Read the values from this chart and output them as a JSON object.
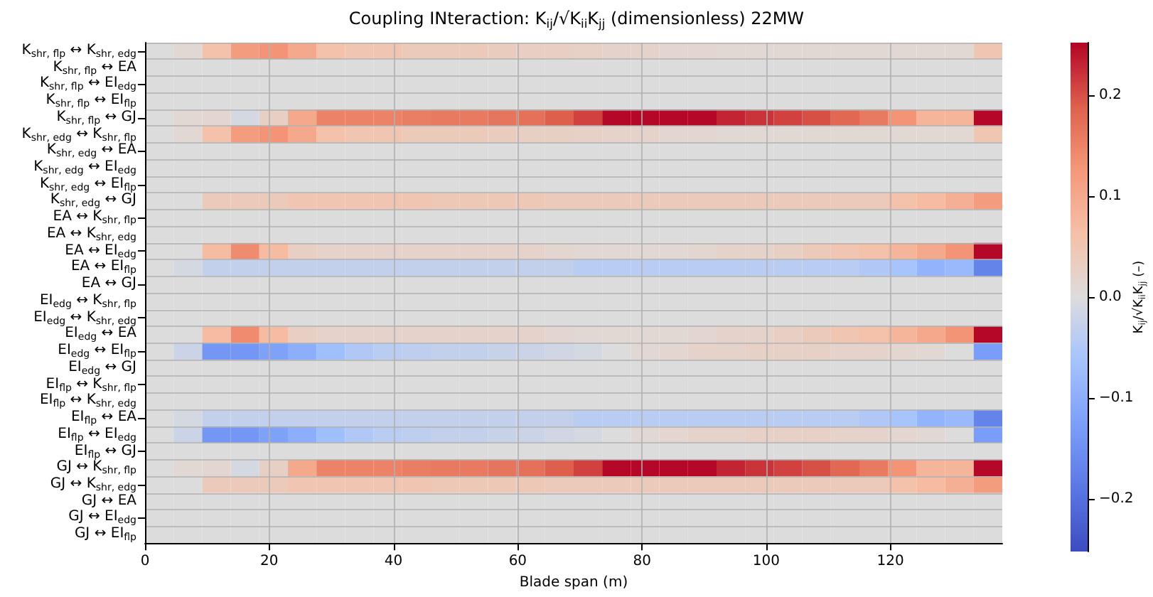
{
  "chart_data": {
    "type": "heatmap",
    "title": "Coupling INteraction: K$_{ij}$/√K$_{ii}$K$_{jj}$ (dimensionless) 22MW",
    "xlabel": "Blade span (m)",
    "clabel": "K$_{ij}$/√K$_{ii}$K$_{jj}$ (–)",
    "x": [
      2.3,
      6.9,
      11.5,
      16.1,
      20.7,
      25.3,
      29.9,
      34.5,
      39.1,
      43.7,
      48.3,
      52.9,
      57.5,
      62.1,
      66.7,
      71.3,
      75.9,
      80.5,
      85.1,
      89.7,
      94.3,
      98.9,
      103.5,
      108.1,
      112.7,
      117.3,
      121.9,
      126.5,
      131.1,
      135.7
    ],
    "xlim": [
      0,
      138
    ],
    "xticks": [
      0,
      20,
      40,
      60,
      80,
      100,
      120
    ],
    "y_categories": [
      "K$_{shr, flp}$ ↔ K$_{shr, edg}$",
      "K$_{shr, flp}$ ↔ EA",
      "K$_{shr, flp}$ ↔ EI$_{edg}$",
      "K$_{shr, flp}$ ↔ EI$_{flp}$",
      "K$_{shr, flp}$ ↔ GJ",
      "K$_{shr, edg}$ ↔ K$_{shr, flp}$",
      "K$_{shr, edg}$ ↔ EA",
      "K$_{shr, edg}$ ↔ EI$_{edg}$",
      "K$_{shr, edg}$ ↔ EI$_{flp}$",
      "K$_{shr, edg}$ ↔ GJ",
      "EA ↔ K$_{shr, flp}$",
      "EA ↔ K$_{shr, edg}$",
      "EA ↔ EI$_{edg}$",
      "EA ↔ EI$_{flp}$",
      "EA ↔ GJ",
      "EI$_{edg}$ ↔ K$_{shr, flp}$",
      "EI$_{edg}$ ↔ K$_{shr, edg}$",
      "EI$_{edg}$ ↔ EA",
      "EI$_{edg}$ ↔ EI$_{flp}$",
      "EI$_{edg}$ ↔ GJ",
      "EI$_{flp}$ ↔ K$_{shr, flp}$",
      "EI$_{flp}$ ↔ K$_{shr, edg}$",
      "EI$_{flp}$ ↔ EA",
      "EI$_{flp}$ ↔ EI$_{edg}$",
      "EI$_{flp}$ ↔ GJ",
      "GJ ↔ K$_{shr, flp}$",
      "GJ ↔ K$_{shr, edg}$",
      "GJ ↔ EA",
      "GJ ↔ EI$_{edg}$",
      "GJ ↔ EI$_{flp}$"
    ],
    "cells": [
      [
        0,
        0.01,
        0.06,
        0.12,
        0.13,
        0.1,
        0.06,
        0.05,
        0.05,
        0.04,
        0.04,
        0.04,
        0.035,
        0.03,
        0.03,
        0.025,
        0.02,
        0.02,
        0.015,
        0.015,
        0.01,
        0.01,
        0.01,
        0.01,
        0.01,
        0.01,
        0.01,
        0.01,
        0.01,
        0.05
      ],
      [
        0,
        0,
        0,
        0,
        0,
        0,
        0,
        0,
        0,
        0,
        0,
        0,
        0,
        0,
        0,
        0,
        0,
        0,
        0,
        0,
        0,
        0,
        0,
        0,
        0,
        0,
        0,
        0,
        0,
        0
      ],
      [
        0,
        0,
        0,
        0,
        0,
        0,
        0,
        0,
        0,
        0,
        0,
        0,
        0,
        0,
        0,
        0,
        0,
        0,
        0,
        0,
        0,
        0,
        0,
        0,
        0,
        0,
        0,
        0,
        0,
        0
      ],
      [
        0,
        0,
        0,
        0,
        0,
        0,
        0,
        0,
        0,
        0,
        0,
        0,
        0,
        0,
        0,
        0,
        0,
        0,
        0,
        0,
        0,
        0,
        0,
        0,
        0,
        0,
        0,
        0,
        0,
        0
      ],
      [
        0,
        0.01,
        0.015,
        -0.01,
        0.03,
        0.1,
        0.15,
        0.15,
        0.15,
        0.155,
        0.16,
        0.16,
        0.165,
        0.17,
        0.19,
        0.21,
        0.25,
        0.25,
        0.25,
        0.25,
        0.23,
        0.22,
        0.21,
        0.2,
        0.18,
        0.16,
        0.13,
        0.08,
        0.08,
        0.25
      ],
      [
        0,
        0.01,
        0.06,
        0.12,
        0.13,
        0.1,
        0.06,
        0.05,
        0.05,
        0.04,
        0.04,
        0.04,
        0.035,
        0.03,
        0.03,
        0.025,
        0.02,
        0.02,
        0.015,
        0.015,
        0.01,
        0.01,
        0.01,
        0.01,
        0.01,
        0.01,
        0.01,
        0.01,
        0.01,
        0.05
      ],
      [
        0,
        0,
        0,
        0,
        0,
        0,
        0,
        0,
        0,
        0,
        0,
        0,
        0,
        0,
        0,
        0,
        0,
        0,
        0,
        0,
        0,
        0,
        0,
        0,
        0,
        0,
        0,
        0,
        0,
        0
      ],
      [
        0,
        0,
        0,
        0,
        0,
        0,
        0,
        0,
        0,
        0,
        0,
        0,
        0,
        0,
        0,
        0,
        0,
        0,
        0,
        0,
        0,
        0,
        0,
        0,
        0,
        0,
        0,
        0,
        0,
        0
      ],
      [
        0,
        0,
        0,
        0,
        0,
        0,
        0,
        0,
        0,
        0,
        0,
        0,
        0,
        0,
        0,
        0,
        0,
        0,
        0,
        0,
        0,
        0,
        0,
        0,
        0,
        0,
        0,
        0,
        0,
        0
      ],
      [
        0,
        0,
        0.04,
        0.04,
        0.04,
        0.05,
        0.05,
        0.05,
        0.05,
        0.05,
        0.045,
        0.045,
        0.045,
        0.045,
        0.04,
        0.04,
        0.04,
        0.04,
        0.04,
        0.04,
        0.04,
        0.04,
        0.04,
        0.04,
        0.04,
        0.04,
        0.06,
        0.07,
        0.09,
        0.12
      ],
      [
        0,
        0,
        0,
        0,
        0,
        0,
        0,
        0,
        0,
        0,
        0,
        0,
        0,
        0,
        0,
        0,
        0,
        0,
        0,
        0,
        0,
        0,
        0,
        0,
        0,
        0,
        0,
        0,
        0,
        0
      ],
      [
        0,
        0,
        0,
        0,
        0,
        0,
        0,
        0,
        0,
        0,
        0,
        0,
        0,
        0,
        0,
        0,
        0,
        0,
        0,
        0,
        0,
        0,
        0,
        0,
        0,
        0,
        0,
        0,
        0,
        0
      ],
      [
        0,
        0,
        0.07,
        0.14,
        0.07,
        0.03,
        0.02,
        0.02,
        0.02,
        0.02,
        0.02,
        0.02,
        0.02,
        0.02,
        0.015,
        0.01,
        0.01,
        0.01,
        0.01,
        0.015,
        0.02,
        0.02,
        0.03,
        0.04,
        0.05,
        0.06,
        0.08,
        0.1,
        0.13,
        0.25
      ],
      [
        0,
        -0.01,
        -0.03,
        -0.03,
        -0.03,
        -0.03,
        -0.03,
        -0.03,
        -0.03,
        -0.03,
        -0.03,
        -0.03,
        -0.03,
        -0.03,
        -0.03,
        -0.04,
        -0.04,
        -0.04,
        -0.04,
        -0.04,
        -0.04,
        -0.04,
        -0.04,
        -0.04,
        -0.04,
        -0.05,
        -0.06,
        -0.09,
        -0.08,
        -0.17
      ],
      [
        0,
        0,
        0,
        0,
        0,
        0,
        0,
        0,
        0,
        0,
        0,
        0,
        0,
        0,
        0,
        0,
        0,
        0,
        0,
        0,
        0,
        0,
        0,
        0,
        0,
        0,
        0,
        0,
        0,
        0
      ],
      [
        0,
        0,
        0,
        0,
        0,
        0,
        0,
        0,
        0,
        0,
        0,
        0,
        0,
        0,
        0,
        0,
        0,
        0,
        0,
        0,
        0,
        0,
        0,
        0,
        0,
        0,
        0,
        0,
        0,
        0
      ],
      [
        0,
        0,
        0,
        0,
        0,
        0,
        0,
        0,
        0,
        0,
        0,
        0,
        0,
        0,
        0,
        0,
        0,
        0,
        0,
        0,
        0,
        0,
        0,
        0,
        0,
        0,
        0,
        0,
        0,
        0
      ],
      [
        0,
        0,
        0.07,
        0.14,
        0.07,
        0.03,
        0.02,
        0.02,
        0.02,
        0.02,
        0.02,
        0.02,
        0.02,
        0.02,
        0.015,
        0.01,
        0.01,
        0.01,
        0.01,
        0.015,
        0.02,
        0.02,
        0.03,
        0.04,
        0.05,
        0.06,
        0.08,
        0.1,
        0.13,
        0.25
      ],
      [
        0,
        -0.02,
        -0.14,
        -0.14,
        -0.12,
        -0.1,
        -0.07,
        -0.05,
        -0.04,
        -0.035,
        -0.03,
        -0.03,
        -0.025,
        -0.02,
        -0.015,
        -0.01,
        0,
        0.01,
        0.015,
        0.02,
        0.02,
        0.025,
        0.025,
        0.025,
        0.02,
        0.02,
        0.015,
        0.01,
        0,
        -0.13
      ],
      [
        0,
        0,
        0,
        0,
        0,
        0,
        0,
        0,
        0,
        0,
        0,
        0,
        0,
        0,
        0,
        0,
        0,
        0,
        0,
        0,
        0,
        0,
        0,
        0,
        0,
        0,
        0,
        0,
        0,
        0
      ],
      [
        0,
        0,
        0,
        0,
        0,
        0,
        0,
        0,
        0,
        0,
        0,
        0,
        0,
        0,
        0,
        0,
        0,
        0,
        0,
        0,
        0,
        0,
        0,
        0,
        0,
        0,
        0,
        0,
        0,
        0
      ],
      [
        0,
        0,
        0,
        0,
        0,
        0,
        0,
        0,
        0,
        0,
        0,
        0,
        0,
        0,
        0,
        0,
        0,
        0,
        0,
        0,
        0,
        0,
        0,
        0,
        0,
        0,
        0,
        0,
        0,
        0
      ],
      [
        0,
        -0.01,
        -0.03,
        -0.03,
        -0.03,
        -0.03,
        -0.03,
        -0.03,
        -0.03,
        -0.03,
        -0.03,
        -0.03,
        -0.03,
        -0.03,
        -0.03,
        -0.04,
        -0.04,
        -0.04,
        -0.04,
        -0.04,
        -0.04,
        -0.04,
        -0.04,
        -0.04,
        -0.04,
        -0.05,
        -0.06,
        -0.09,
        -0.08,
        -0.17
      ],
      [
        0,
        -0.02,
        -0.14,
        -0.14,
        -0.12,
        -0.1,
        -0.07,
        -0.05,
        -0.04,
        -0.035,
        -0.03,
        -0.03,
        -0.025,
        -0.02,
        -0.015,
        -0.01,
        0,
        0.01,
        0.015,
        0.02,
        0.02,
        0.025,
        0.025,
        0.025,
        0.02,
        0.02,
        0.015,
        0.01,
        0,
        -0.13
      ],
      [
        0,
        0,
        0,
        0,
        0,
        0,
        0,
        0,
        0,
        0,
        0,
        0,
        0,
        0,
        0,
        0,
        0,
        0,
        0,
        0,
        0,
        0,
        0,
        0,
        0,
        0,
        0,
        0,
        0,
        0
      ],
      [
        0,
        0.01,
        0.015,
        -0.01,
        0.03,
        0.1,
        0.15,
        0.15,
        0.15,
        0.155,
        0.16,
        0.16,
        0.165,
        0.17,
        0.19,
        0.21,
        0.25,
        0.25,
        0.25,
        0.25,
        0.23,
        0.22,
        0.21,
        0.2,
        0.18,
        0.16,
        0.13,
        0.08,
        0.08,
        0.25
      ],
      [
        0,
        0,
        0.04,
        0.04,
        0.04,
        0.05,
        0.05,
        0.05,
        0.05,
        0.05,
        0.045,
        0.045,
        0.045,
        0.045,
        0.04,
        0.04,
        0.04,
        0.04,
        0.04,
        0.04,
        0.04,
        0.04,
        0.04,
        0.04,
        0.04,
        0.04,
        0.06,
        0.07,
        0.09,
        0.12
      ],
      [
        0,
        0,
        0,
        0,
        0,
        0,
        0,
        0,
        0,
        0,
        0,
        0,
        0,
        0,
        0,
        0,
        0,
        0,
        0,
        0,
        0,
        0,
        0,
        0,
        0,
        0,
        0,
        0,
        0,
        0
      ],
      [
        0,
        0,
        0,
        0,
        0,
        0,
        0,
        0,
        0,
        0,
        0,
        0,
        0,
        0,
        0,
        0,
        0,
        0,
        0,
        0,
        0,
        0,
        0,
        0,
        0,
        0,
        0,
        0,
        0,
        0
      ],
      [
        0,
        0,
        0,
        0,
        0,
        0,
        0,
        0,
        0,
        0,
        0,
        0,
        0,
        0,
        0,
        0,
        0,
        0,
        0,
        0,
        0,
        0,
        0,
        0,
        0,
        0,
        0,
        0,
        0,
        0
      ]
    ],
    "clim": [
      -0.252,
      0.252
    ],
    "cticks": [
      {
        "value": -0.2,
        "label": "−0.2"
      },
      {
        "value": -0.1,
        "label": "−0.1"
      },
      {
        "value": 0,
        "label": "0.0"
      },
      {
        "value": 0.1,
        "label": "0.1"
      },
      {
        "value": 0.2,
        "label": "0.2"
      }
    ],
    "grid": true
  }
}
